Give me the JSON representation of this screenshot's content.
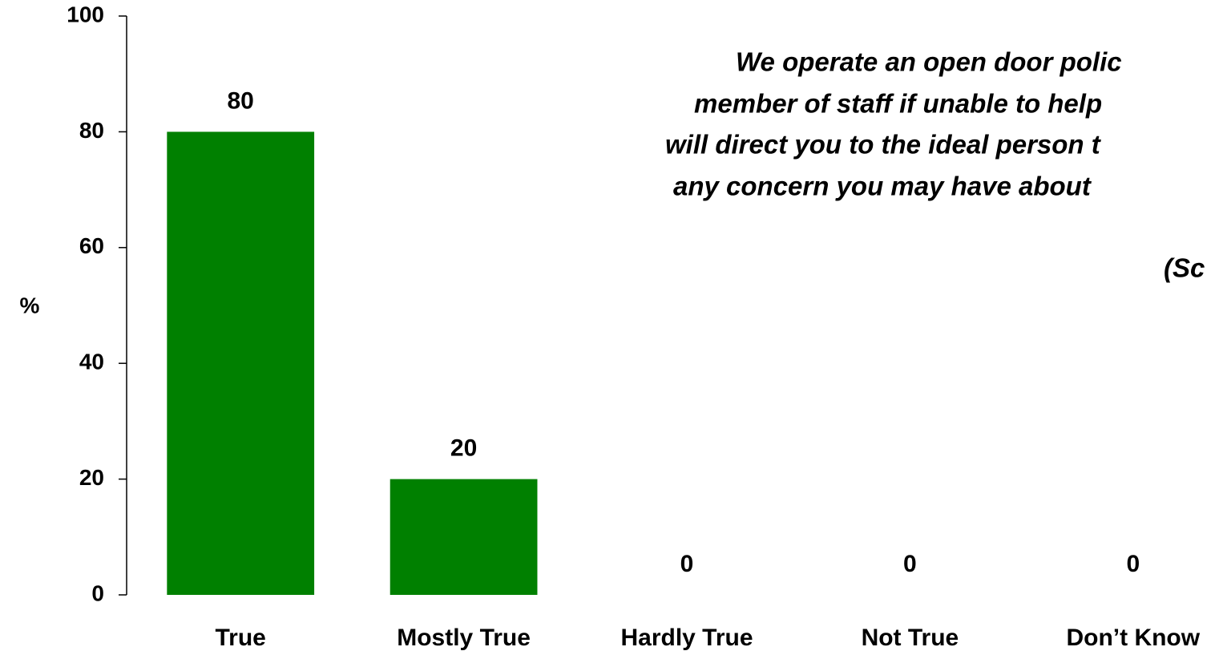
{
  "chart_data": {
    "type": "bar",
    "y_label": "%",
    "categories": [
      "True",
      "Mostly True",
      "Hardly True",
      "Not True",
      "Don’t Know"
    ],
    "values": [
      80,
      20,
      0,
      0,
      0
    ],
    "color": "#008000",
    "ylim": [
      0,
      100
    ],
    "yticks": [
      0,
      20,
      40,
      60,
      80,
      100
    ],
    "grid": false,
    "annotations": [
      "We operate an open door polic",
      "member of staff if unable to help",
      "will direct you to the ideal person t",
      "any concern you may have about",
      "(Sc"
    ]
  }
}
